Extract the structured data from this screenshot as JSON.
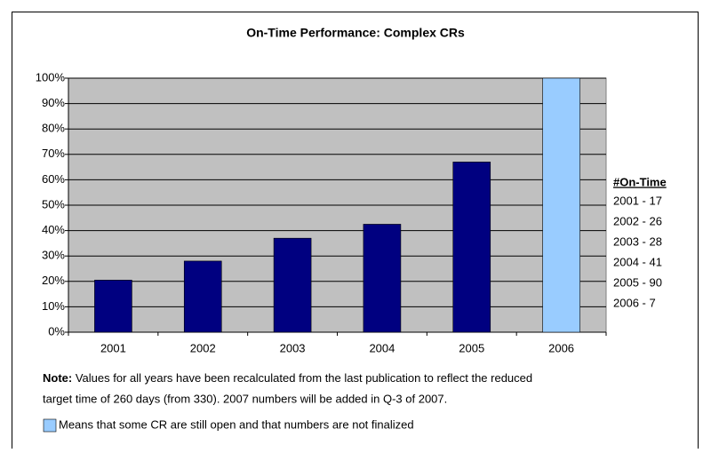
{
  "chart_data": {
    "type": "bar",
    "title": "On-Time Performance: Complex CRs",
    "categories": [
      "2001",
      "2002",
      "2003",
      "2004",
      "2005",
      "2006"
    ],
    "values": [
      20.5,
      28,
      37,
      42.5,
      67,
      100
    ],
    "colors": [
      "#000080",
      "#000080",
      "#000080",
      "#000080",
      "#000080",
      "#99ccff"
    ],
    "ylim": [
      0,
      100
    ],
    "yticks": [
      {
        "value": 0,
        "label": "0%"
      },
      {
        "value": 10,
        "label": "10%"
      },
      {
        "value": 20,
        "label": "20%"
      },
      {
        "value": 30,
        "label": "30%"
      },
      {
        "value": 40,
        "label": "40%"
      },
      {
        "value": 50,
        "label": "50%"
      },
      {
        "value": 60,
        "label": "60%"
      },
      {
        "value": 70,
        "label": "70%"
      },
      {
        "value": 80,
        "label": "80%"
      },
      {
        "value": 90,
        "label": "90%"
      },
      {
        "value": 100,
        "label": "100%"
      }
    ],
    "grid": true,
    "plot_background": "#c0c0c0",
    "side_table": {
      "header": "#On-Time",
      "rows": [
        "2001 - 17",
        "2002 - 26",
        "2003 - 28",
        "2004 - 41",
        "2005 - 90",
        "2006 - 7"
      ]
    },
    "note": {
      "label": "Note:",
      "lines": [
        "Values for all years have been recalculated from the last publication to reflect the reduced",
        "target time of 260 days (from 330).  2007 numbers will be added in Q-3 of 2007."
      ]
    },
    "legend": {
      "color": "#99ccff",
      "text": "Means that some CR are still open and that numbers are not finalized"
    }
  }
}
